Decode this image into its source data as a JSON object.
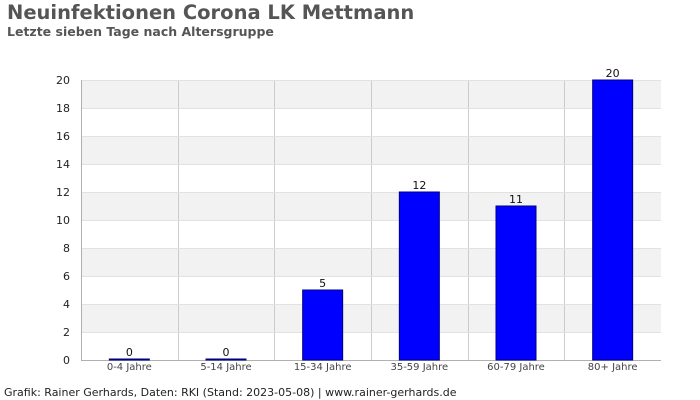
{
  "chart_data": {
    "type": "bar",
    "title": "Neuinfektionen Corona LK Mettmann",
    "subtitle": "Letzte sieben Tage nach Altersgruppe",
    "categories": [
      "0-4 Jahre",
      "5-14 Jahre",
      "15-34 Jahre",
      "35-59 Jahre",
      "60-79 Jahre",
      "80+ Jahre"
    ],
    "values": [
      0,
      0,
      5,
      12,
      11,
      20
    ],
    "ylim": [
      0,
      20
    ],
    "yticks": [
      0,
      2,
      4,
      6,
      8,
      10,
      12,
      14,
      16,
      18,
      20
    ],
    "grid": true,
    "bar_color": "#0000ff",
    "bar_border_color": "#000080",
    "band_color": "#f2f2f2",
    "grid_color": "#cccccc"
  },
  "footer": "Grafik: Rainer Gerhards, Daten: RKI (Stand: 2023-05-08) | www.rainer-gerhards.de"
}
